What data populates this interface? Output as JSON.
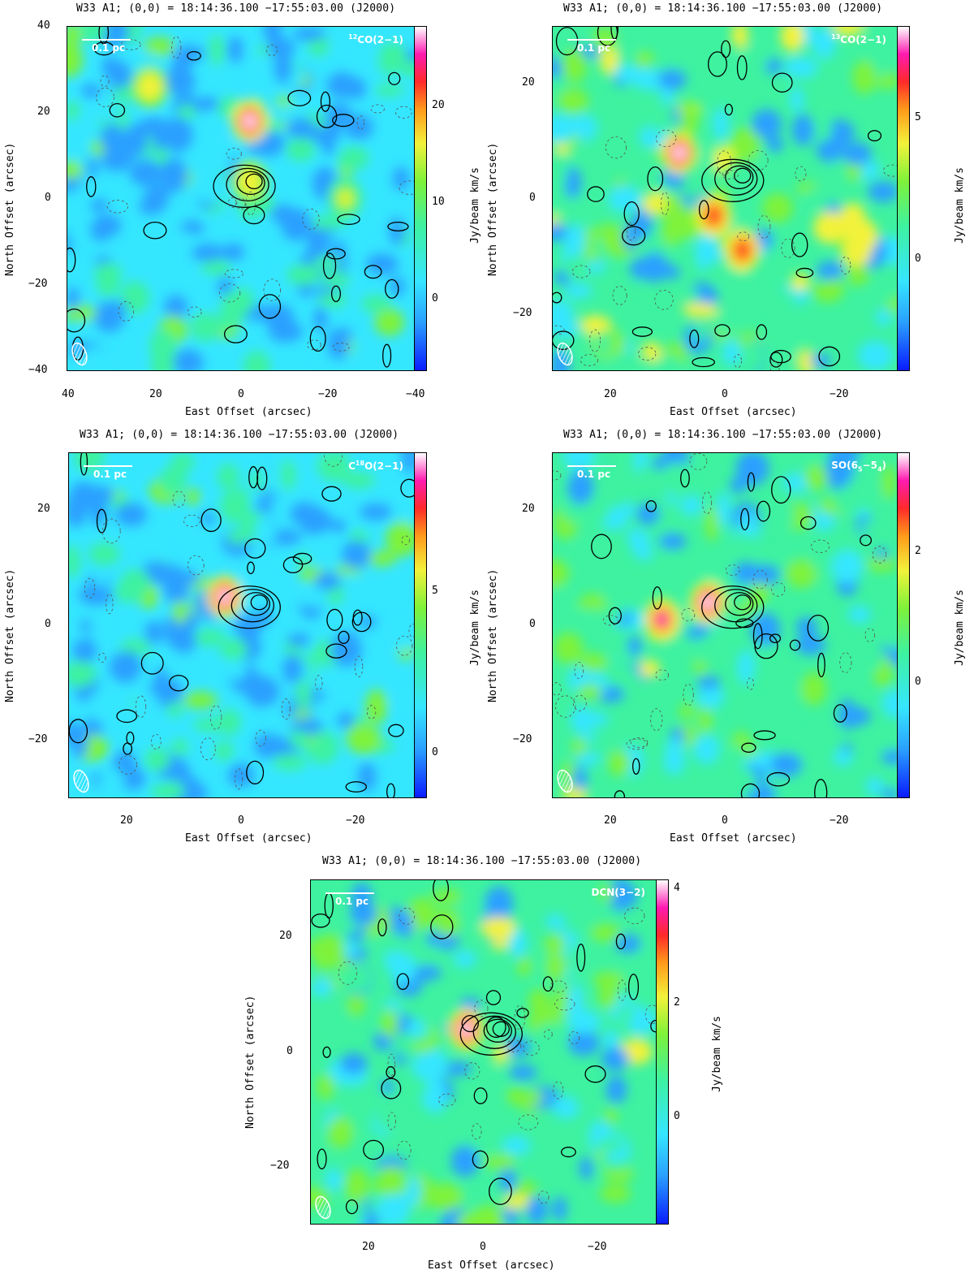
{
  "panels": [
    {
      "id": "p1",
      "title": "W33 A1; (0,0) = 18:14:36.100      −17:55:03.00 (J2000)",
      "molecule_html": "<sup>12</sup>CO(2−1)",
      "scale_label": "0.1 pc",
      "xlabel": "East Offset (arcsec)",
      "ylabel": "North Offset (arcsec)",
      "clabel": "Jy/beam km/s",
      "xticks": [
        "40",
        "20",
        "0",
        "−20",
        "−40"
      ],
      "yticks": [
        "40",
        "20",
        "0",
        "−20",
        "−40"
      ],
      "cticks": [
        "20",
        "10",
        "0"
      ]
    },
    {
      "id": "p2",
      "title": "W33 A1; (0,0) = 18:14:36.100      −17:55:03.00 (J2000)",
      "molecule_html": "<sup>13</sup>CO(2−1)",
      "scale_label": "0.1 pc",
      "xlabel": "East Offset (arcsec)",
      "ylabel": "North Offset (arcsec)",
      "clabel": "Jy/beam km/s",
      "xticks": [
        "20",
        "0",
        "−20"
      ],
      "yticks": [
        "20",
        "0",
        "−20"
      ],
      "cticks": [
        "5",
        "0"
      ]
    },
    {
      "id": "p3",
      "title": "W33 A1; (0,0) = 18:14:36.100      −17:55:03.00 (J2000)",
      "molecule_html": "C<sup>18</sup>O(2−1)",
      "scale_label": "0.1 pc",
      "xlabel": "East Offset (arcsec)",
      "ylabel": "North Offset (arcsec)",
      "clabel": "Jy/beam km/s",
      "xticks": [
        "20",
        "0",
        "−20"
      ],
      "yticks": [
        "20",
        "0",
        "−20"
      ],
      "cticks": [
        "5",
        "0"
      ]
    },
    {
      "id": "p4",
      "title": "W33 A1; (0,0) = 18:14:36.100      −17:55:03.00 (J2000)",
      "molecule_html": "SO(6<sub>5</sub>−5<sub>4</sub>)",
      "scale_label": "0.1 pc",
      "xlabel": "East Offset (arcsec)",
      "ylabel": "North Offset (arcsec)",
      "clabel": "Jy/beam km/s",
      "xticks": [
        "20",
        "0",
        "−20"
      ],
      "yticks": [
        "20",
        "0",
        "−20"
      ],
      "cticks": [
        "2",
        "0"
      ]
    },
    {
      "id": "p5",
      "title": "W33 A1; (0,0) = 18:14:36.100      −17:55:03.00 (J2000)",
      "molecule_html": "DCN(3−2)",
      "scale_label": "0.1 pc",
      "xlabel": "East Offset (arcsec)",
      "ylabel": "North Offset (arcsec)",
      "clabel": "Jy/beam km/s",
      "xticks": [
        "20",
        "0",
        "−20"
      ],
      "yticks": [
        "20",
        "0",
        "−20"
      ],
      "cticks": [
        "4",
        "2",
        "0"
      ]
    }
  ],
  "chart_data": [
    {
      "type": "heatmap",
      "title": "W33 A1; (0,0) = 18:14:36.100 −17:55:03.00 (J2000)",
      "annotation": "12CO(2−1)",
      "xlabel": "East Offset (arcsec)",
      "ylabel": "North Offset (arcsec)",
      "colorbar_label": "Jy/beam km/s",
      "xlim": [
        40,
        -40
      ],
      "ylim": [
        -40,
        40
      ],
      "clim": [
        -5,
        27
      ],
      "colorbar_ticks": [
        0,
        10,
        20
      ],
      "peaks": [
        {
          "x": -2,
          "y": 18,
          "value": 26
        },
        {
          "x": 21,
          "y": 26,
          "value": 16
        },
        {
          "x": -24,
          "y": 0,
          "value": 14
        },
        {
          "x": -2,
          "y": 4,
          "value": 16
        }
      ],
      "contours_peak": {
        "x": -3,
        "y": 4
      }
    },
    {
      "type": "heatmap",
      "title": "W33 A1; (0,0) = 18:14:36.100 −17:55:03.00 (J2000)",
      "annotation": "13CO(2−1)",
      "xlabel": "East Offset (arcsec)",
      "ylabel": "North Offset (arcsec)",
      "colorbar_label": "Jy/beam km/s",
      "xlim": [
        30,
        -30
      ],
      "ylim": [
        -30,
        30
      ],
      "clim": [
        -4,
        9
      ],
      "colorbar_ticks": [
        0,
        5
      ],
      "peaks": [
        {
          "x": 8,
          "y": 8,
          "value": 8
        },
        {
          "x": -3,
          "y": -9,
          "value": 6
        },
        {
          "x": 2,
          "y": -3,
          "value": 6
        }
      ],
      "contours_peak": {
        "x": -3,
        "y": 4
      }
    },
    {
      "type": "heatmap",
      "title": "W33 A1; (0,0) = 18:14:36.100 −17:55:03.00 (J2000)",
      "annotation": "C18O(2−1)",
      "xlabel": "East Offset (arcsec)",
      "ylabel": "North Offset (arcsec)",
      "colorbar_label": "Jy/beam km/s",
      "xlim": [
        30,
        -30
      ],
      "ylim": [
        -30,
        30
      ],
      "clim": [
        -2,
        10
      ],
      "colorbar_ticks": [
        0,
        5
      ],
      "peaks": [
        {
          "x": 3,
          "y": 5,
          "value": 10
        }
      ],
      "contours_peak": {
        "x": -3,
        "y": 4
      }
    },
    {
      "type": "heatmap",
      "title": "W33 A1; (0,0) = 18:14:36.100 −17:55:03.00 (J2000)",
      "annotation": "SO(65−54)",
      "xlabel": "East Offset (arcsec)",
      "ylabel": "North Offset (arcsec)",
      "colorbar_label": "Jy/beam km/s",
      "xlim": [
        30,
        -30
      ],
      "ylim": [
        -30,
        30
      ],
      "clim": [
        -1.2,
        3.5
      ],
      "colorbar_ticks": [
        0,
        2
      ],
      "peaks": [
        {
          "x": 3,
          "y": 4,
          "value": 3.4
        },
        {
          "x": 11,
          "y": 1,
          "value": 2.8
        }
      ],
      "contours_peak": {
        "x": -3,
        "y": 4
      }
    },
    {
      "type": "heatmap",
      "title": "W33 A1; (0,0) = 18:14:36.100 −17:55:03.00 (J2000)",
      "annotation": "DCN(3−2)",
      "xlabel": "East Offset (arcsec)",
      "ylabel": "North Offset (arcsec)",
      "colorbar_label": "Jy/beam km/s",
      "xlim": [
        30,
        -30
      ],
      "ylim": [
        -30,
        30
      ],
      "clim": [
        -1.5,
        4.3
      ],
      "colorbar_ticks": [
        0,
        2,
        4
      ],
      "peaks": [
        {
          "x": 3,
          "y": 4,
          "value": 4.2
        }
      ],
      "contours_peak": {
        "x": -3,
        "y": 4
      }
    }
  ]
}
